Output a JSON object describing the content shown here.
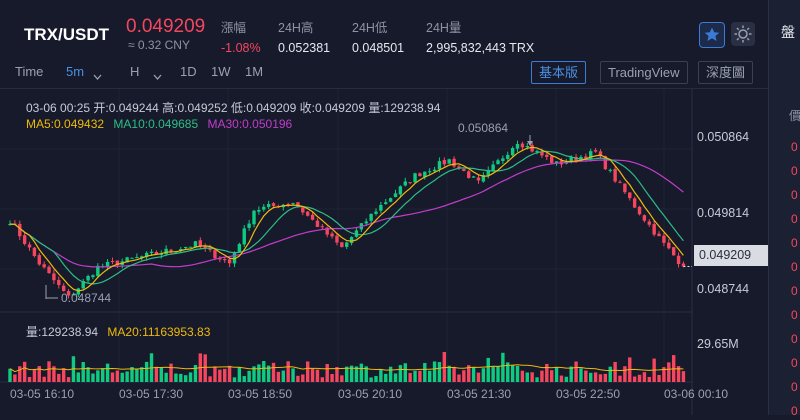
{
  "header": {
    "pair": "TRX/USDT",
    "price": "0.049209",
    "cny": "≈ 0.32 CNY",
    "stats": [
      {
        "label": "漲幅",
        "value": "-1.08%",
        "color": "#f6465d"
      },
      {
        "label": "24H高",
        "value": "0.052381"
      },
      {
        "label": "24H低",
        "value": "0.048501"
      },
      {
        "label": "24H量",
        "value": "2,995,832,443 TRX"
      }
    ]
  },
  "toolbar": {
    "time_label": "Time",
    "intervals": [
      "5m",
      "H",
      "1D",
      "1W",
      "1M"
    ],
    "selected_interval": "5m",
    "modes": [
      "基本版",
      "TradingView",
      "深度圖"
    ],
    "selected_mode": "基本版"
  },
  "candle_info": {
    "time": "03-06 00:25",
    "open": "开:0.049244",
    "high": "高:0.049252",
    "low": "低:0.049209",
    "close": "收:0.049209",
    "volume": "量:129238.94"
  },
  "ma_legend": {
    "ma5": "MA5:0.049432",
    "ma10": "MA10:0.049685",
    "ma30": "MA30:0.050196"
  },
  "volume_legend": {
    "vol": "量:129238.94",
    "ma20": "MA20:11163953.83"
  },
  "price_axis": [
    "0.050864",
    "0.049814",
    "0.049209",
    "0.048744"
  ],
  "volume_axis": "29.65M",
  "time_axis": [
    "03-05 16:10",
    "03-05 17:30",
    "03-05 18:50",
    "03-05 20:10",
    "03-05 21:30",
    "03-05 22:50",
    "03-06 00:10"
  ],
  "annotations": {
    "high": "0.050864",
    "low": "0.048744"
  },
  "colors": {
    "up": "#0ecb81",
    "down": "#f6465d",
    "ma5": "#f0b90b",
    "ma10": "#2ebd85",
    "ma30": "#c13ec8",
    "accent": "#3a7bd5"
  },
  "right_strip": {
    "title": "盤",
    "sub": "價",
    "values": [
      "0",
      "0",
      "0",
      "0",
      "0",
      "0",
      "0",
      "0",
      "0",
      "0",
      "0",
      "0"
    ]
  },
  "chart_data": {
    "type": "candlestick",
    "price_anchors": [
      [
        0,
        0.04981
      ],
      [
        6,
        0.04925
      ],
      [
        12,
        0.0488
      ],
      [
        18,
        0.0492
      ],
      [
        28,
        0.04935
      ],
      [
        38,
        0.0495
      ],
      [
        45,
        0.04925
      ],
      [
        50,
        0.04995
      ],
      [
        58,
        0.05005
      ],
      [
        68,
        0.04945
      ],
      [
        75,
        0.04995
      ],
      [
        83,
        0.0504
      ],
      [
        90,
        0.0506
      ],
      [
        96,
        0.0503
      ],
      [
        104,
        0.05085
      ],
      [
        112,
        0.05055
      ],
      [
        120,
        0.0507
      ],
      [
        128,
        0.05
      ],
      [
        134,
        0.0495
      ],
      [
        138,
        0.04921
      ]
    ]
  }
}
